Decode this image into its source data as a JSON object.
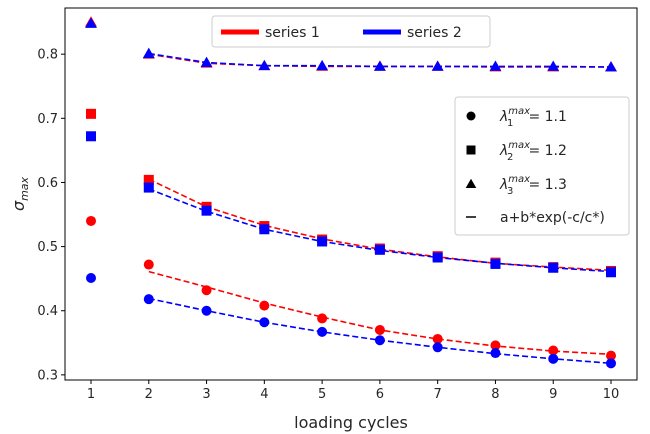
{
  "chart_data": {
    "type": "scatter",
    "xlabel": "loading cycles",
    "ylabel": "σ",
    "ylabel_sub": "max",
    "xlim": [
      0.55,
      10.45
    ],
    "ylim": [
      0.292,
      0.872
    ],
    "xticks": [
      1,
      2,
      3,
      4,
      5,
      6,
      7,
      8,
      9,
      10
    ],
    "yticks": [
      0.3,
      0.4,
      0.5,
      0.6,
      0.7,
      0.8
    ],
    "x": [
      1,
      2,
      3,
      4,
      5,
      6,
      7,
      8,
      9,
      10
    ],
    "series": [
      {
        "name": "series 1",
        "color": "#ff0000",
        "groups": [
          {
            "marker": "circle",
            "values": [
              0.54,
              0.472,
              0.432,
              0.408,
              0.388,
              0.37,
              0.356,
              0.346,
              0.338,
              0.33
            ]
          },
          {
            "marker": "square",
            "values": [
              0.707,
              0.604,
              0.562,
              0.532,
              0.511,
              0.497,
              0.485,
              0.475,
              0.468,
              0.462
            ]
          },
          {
            "marker": "triangle",
            "values": [
              0.85,
              0.8,
              0.786,
              0.782,
              0.781,
              0.781,
              0.781,
              0.78,
              0.78,
              0.78
            ]
          }
        ],
        "fits": [
          [
            0.461,
            0.437,
            0.412,
            0.39,
            0.37,
            0.356,
            0.345,
            0.337,
            0.332
          ],
          [
            0.605,
            0.562,
            0.533,
            0.512,
            0.496,
            0.484,
            0.474,
            0.468,
            0.463
          ],
          [
            0.8,
            0.786,
            0.782,
            0.781,
            0.781,
            0.781,
            0.78,
            0.78,
            0.78
          ]
        ]
      },
      {
        "name": "series 2",
        "color": "#0000ff",
        "groups": [
          {
            "marker": "circle",
            "values": [
              0.451,
              0.418,
              0.4,
              0.382,
              0.367,
              0.354,
              0.343,
              0.334,
              0.325,
              0.318
            ]
          },
          {
            "marker": "square",
            "values": [
              0.672,
              0.592,
              0.556,
              0.527,
              0.508,
              0.495,
              0.483,
              0.473,
              0.467,
              0.46
            ]
          },
          {
            "marker": "triangle",
            "values": [
              0.848,
              0.801,
              0.787,
              0.782,
              0.782,
              0.781,
              0.781,
              0.781,
              0.781,
              0.78
            ]
          }
        ],
        "fits": [
          [
            0.419,
            0.4,
            0.382,
            0.367,
            0.354,
            0.343,
            0.333,
            0.325,
            0.318
          ],
          [
            0.59,
            0.555,
            0.527,
            0.508,
            0.494,
            0.483,
            0.474,
            0.467,
            0.461
          ],
          [
            0.801,
            0.787,
            0.782,
            0.782,
            0.781,
            0.781,
            0.781,
            0.781,
            0.78
          ]
        ]
      }
    ],
    "legend_top": {
      "placement": "upper-center",
      "entries": [
        {
          "label": "series 1",
          "color": "#ff0000"
        },
        {
          "label": "series 2",
          "color": "#0000ff"
        }
      ]
    },
    "legend_right": {
      "placement": "right",
      "entries": [
        {
          "marker": "circle",
          "symbol": "λ",
          "sub": "1",
          "sup": "max",
          "text": " = 1.1"
        },
        {
          "marker": "square",
          "symbol": "λ",
          "sub": "2",
          "sup": "max",
          "text": " = 1.2"
        },
        {
          "marker": "triangle",
          "symbol": "λ",
          "sub": "3",
          "sup": "max",
          "text": " = 1.3"
        },
        {
          "marker": "dash",
          "text": "a+b*exp(-c/c*)"
        }
      ]
    },
    "grid": false
  }
}
